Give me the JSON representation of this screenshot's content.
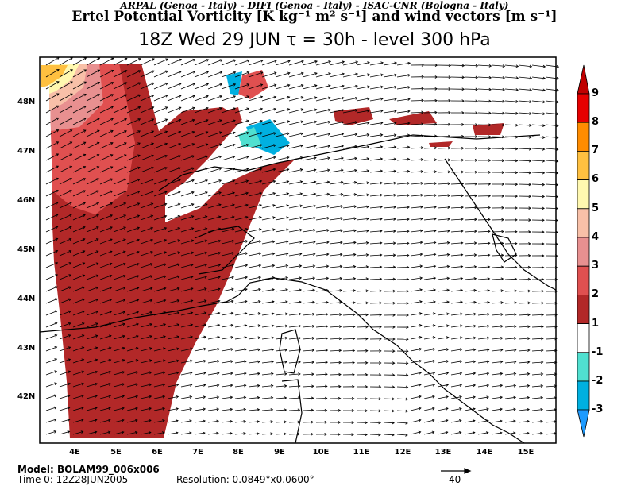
{
  "header": {
    "credits": "ARPAL (Genoa - Italy)  -  DIFI (Genoa - Italy)  -  ISAC-CNR (Bologna - Italy)",
    "variable": "Ertel Potential Vorticity [K kg⁻¹ m² s⁻¹] and wind vectors [m s⁻¹]",
    "time": "18Z Wed 29 JUN   τ = 30h   -   level 300 hPa"
  },
  "lat_labels": [
    "48N",
    "47N",
    "46N",
    "45N",
    "44N",
    "43N",
    "42N"
  ],
  "lon_labels": [
    "4E",
    "5E",
    "6E",
    "7E",
    "8E",
    "9E",
    "10E",
    "11E",
    "12E",
    "13E",
    "14E",
    "15E"
  ],
  "colorbar": {
    "labels": [
      "9",
      "8",
      "7",
      "6",
      "5",
      "4",
      "3",
      "2",
      "1",
      "-1",
      "-2",
      "-3"
    ],
    "colors": [
      "#c00000",
      "#e60000",
      "#ff8c00",
      "#ffc040",
      "#fff8b0",
      "#f8c0a8",
      "#e89090",
      "#e05050",
      "#b22828",
      "#ffffff",
      "#50e0d0",
      "#00b0e0",
      "#1e9bff"
    ]
  },
  "footer": {
    "model": "Model: BOLAM99_006x006",
    "time0": "Time 0: 12Z28JUN2005",
    "resolution": "Resolution: 0.0849°x0.0600°",
    "ref_vector": "40"
  }
}
